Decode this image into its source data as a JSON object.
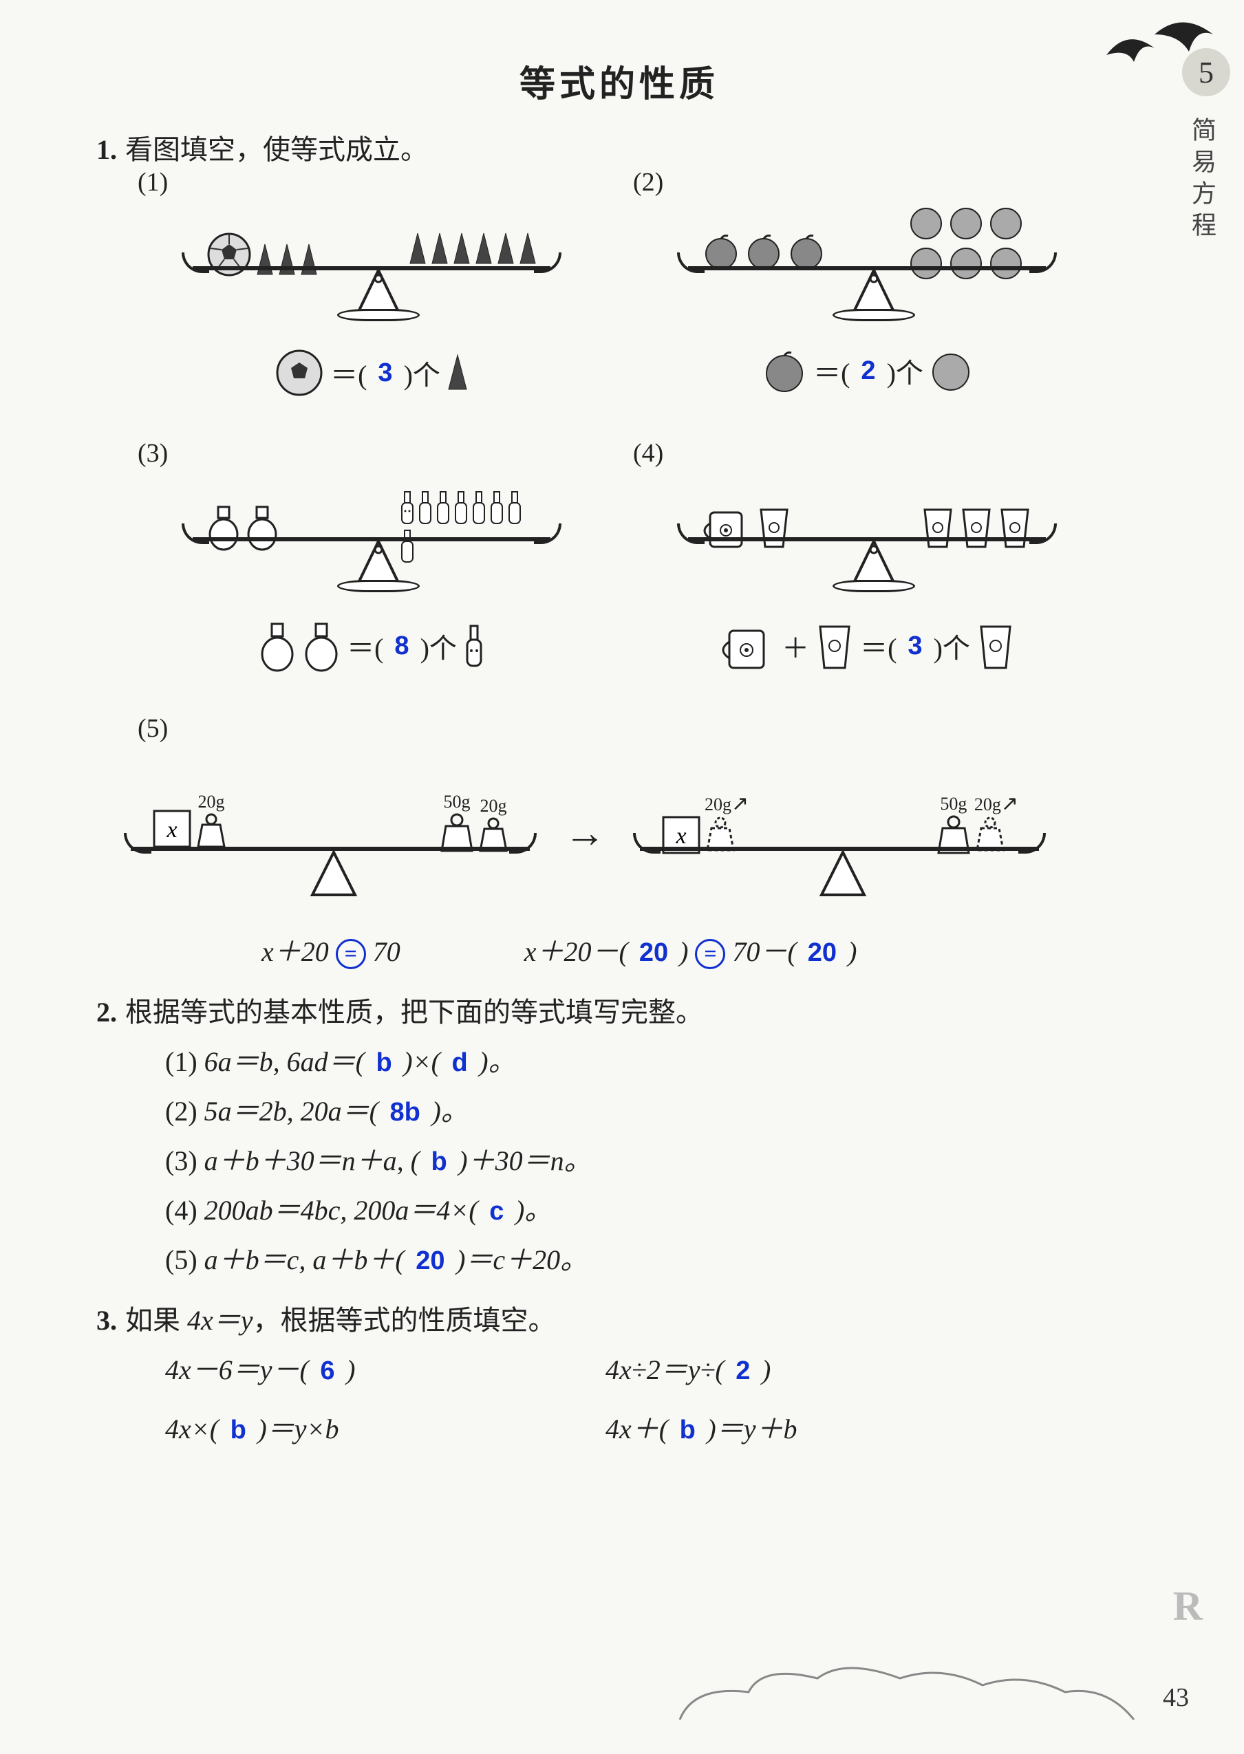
{
  "title": "等式的性质",
  "chapter_num": "5",
  "chapter_label": "简易方程",
  "page_number": "43",
  "colors": {
    "text": "#222222",
    "answer": "#1030d0",
    "badge_bg": "#d8d8d0",
    "page_bg": "#f8f8f5"
  },
  "q1": {
    "num": "1.",
    "text": "看图填空，使等式成立。",
    "items": [
      {
        "label": "(1)",
        "left_icons": [
          "ball",
          "cone",
          "cone",
          "cone"
        ],
        "right_icons": [
          "cone",
          "cone",
          "cone",
          "cone",
          "cone",
          "cone"
        ],
        "eq_icon_left": "ball",
        "eq_left_open": "＝(",
        "ans": "3",
        "eq_mid": ")个",
        "eq_icon_right": "cone"
      },
      {
        "label": "(2)",
        "left_icons": [
          "apple",
          "apple",
          "apple"
        ],
        "right_icons": [
          "orange",
          "orange",
          "orange",
          "orange",
          "orange",
          "orange"
        ],
        "eq_icon_left": "apple",
        "eq_left_open": "＝(",
        "ans": "2",
        "eq_mid": ")个",
        "eq_icon_right": "orange"
      },
      {
        "label": "(3)",
        "left_icons": [
          "jar",
          "jar"
        ],
        "right_icons": [
          "bottle",
          "bottle",
          "bottle",
          "bottle",
          "bottle",
          "bottle",
          "bottle",
          "bottle"
        ],
        "eq_icon_left": "jar2",
        "eq_left_open": "＝(",
        "ans": "8",
        "eq_mid": ")个",
        "eq_icon_right": "bottle"
      },
      {
        "label": "(4)",
        "left_icons": [
          "mug",
          "cup"
        ],
        "right_icons": [
          "cup",
          "cup",
          "cup"
        ],
        "eq_icon_left": "mug",
        "eq_plus": "＋",
        "eq_icon_mid": "cup",
        "eq_left_open": "＝(",
        "ans": "3",
        "eq_mid": ")个",
        "eq_icon_right": "cup"
      }
    ],
    "item5": {
      "label": "(5)",
      "left_labels": [
        "x",
        "20g"
      ],
      "right_labels": [
        "50g",
        "20g"
      ],
      "arrow": "→",
      "left2_labels": [
        "x",
        "20g"
      ],
      "right2_labels": [
        "50g",
        "20g"
      ],
      "eq_left_pre": "x＋20",
      "eq_left_sym": "=",
      "eq_left_post": "70",
      "eq_right_pre": "x＋20－(",
      "eq_right_a1": "20",
      "eq_right_mid": ")",
      "eq_right_sym": "=",
      "eq_right_post_pre": "70－(",
      "eq_right_a2": "20",
      "eq_right_end": ")"
    }
  },
  "q2": {
    "num": "2.",
    "text": "根据等式的基本性质，把下面的等式填写完整。",
    "lines": [
      {
        "label": "(1)",
        "pre": "6a＝b, 6ad＝(",
        "a1": "b",
        "mid": ")×(",
        "a2": "d",
        "post": ")。"
      },
      {
        "label": "(2)",
        "pre": "5a＝2b, 20a＝(",
        "a1": "8b",
        "mid": "",
        "a2": "",
        "post": ")。"
      },
      {
        "label": "(3)",
        "pre": "a＋b＋30＝n＋a, (",
        "a1": "b",
        "mid": "",
        "a2": "",
        "post": ")＋30＝n。"
      },
      {
        "label": "(4)",
        "pre": "200ab＝4bc, 200a＝4×(",
        "a1": "c",
        "mid": "",
        "a2": "",
        "post": ")。"
      },
      {
        "label": "(5)",
        "pre": "a＋b＝c, a＋b＋(",
        "a1": "20",
        "mid": "",
        "a2": "",
        "post": ")＝c＋20。"
      }
    ]
  },
  "q3": {
    "num": "3.",
    "text_pre": "如果 ",
    "text_math": "4x＝y",
    "text_post": "，根据等式的性质填空。",
    "rows": [
      {
        "l_pre": "4x－6＝y－(",
        "l_ans": "6",
        "l_post": ")",
        "r_pre": "4x÷2＝y÷(",
        "r_ans": "2",
        "r_post": ")"
      },
      {
        "l_pre": "4x×(",
        "l_ans": "b",
        "l_post": ")＝y×b",
        "r_pre": "4x＋(",
        "r_ans": "b",
        "r_post": ")＝y＋b"
      }
    ]
  }
}
